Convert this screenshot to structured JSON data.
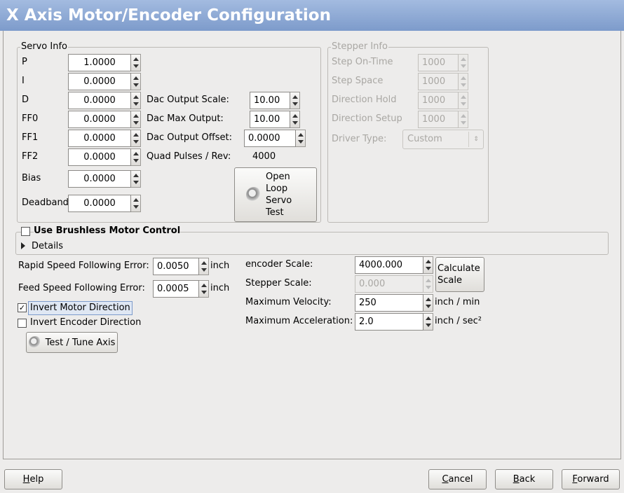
{
  "window": {
    "title": "X Axis Motor/Encoder Configuration"
  },
  "servo_info": {
    "legend": "Servo Info",
    "fields": [
      {
        "label": "P",
        "value": "1.0000"
      },
      {
        "label": "I",
        "value": "0.0000"
      },
      {
        "label": "D",
        "value": "0.0000"
      },
      {
        "label": "FF0",
        "value": "0.0000"
      },
      {
        "label": "FF1",
        "value": "0.0000"
      },
      {
        "label": "FF2",
        "value": "0.0000"
      },
      {
        "label": "Bias",
        "value": "0.0000"
      },
      {
        "label": "Deadband",
        "value": "0.0000"
      }
    ]
  },
  "dac": {
    "fields": [
      {
        "label": "Dac Output Scale:",
        "value": "10.00"
      },
      {
        "label": "Dac Max Output:",
        "value": "10.00"
      },
      {
        "label": "Dac Output Offset:",
        "value": "0.0000"
      }
    ],
    "quad_pulses": {
      "label": "Quad Pulses / Rev:",
      "value": "4000"
    },
    "test_button": "Open Loop Servo Test"
  },
  "stepper_info": {
    "legend": "Stepper Info",
    "fields": [
      {
        "label": "Step On-Time",
        "value": "1000"
      },
      {
        "label": "Step Space",
        "value": "1000"
      },
      {
        "label": "Direction Hold",
        "value": "1000"
      },
      {
        "label": "Direction Setup",
        "value": "1000"
      }
    ],
    "driver_type": {
      "label": "Driver Type:",
      "value": "Custom"
    }
  },
  "brushless": {
    "label": "Use Brushless Motor Control",
    "checked": false,
    "details": "Details"
  },
  "following_error": [
    {
      "label": "Rapid Speed Following Error:",
      "value": "0.0050",
      "unit": "inch"
    },
    {
      "label": "Feed Speed Following Error:",
      "value": "0.0005",
      "unit": "inch"
    }
  ],
  "options": [
    {
      "label": "Invert Motor Direction",
      "checked": true
    },
    {
      "label": "Invert Encoder Direction",
      "checked": false
    }
  ],
  "test_tune_button": "Test / Tune Axis",
  "scale": [
    {
      "label": "encoder Scale:",
      "value": "4000.000"
    },
    {
      "label": "Stepper Scale:",
      "value": "0.000"
    },
    {
      "label": "Maximum Velocity:",
      "value": "250",
      "unit": "inch / min"
    },
    {
      "label": "Maximum Acceleration:",
      "value": "2.0",
      "unit": "inch / sec²"
    }
  ],
  "calculate_button": "Calculate Scale",
  "footer": {
    "buttons": [
      "Help",
      "Cancel",
      "Back",
      "Forward"
    ]
  }
}
